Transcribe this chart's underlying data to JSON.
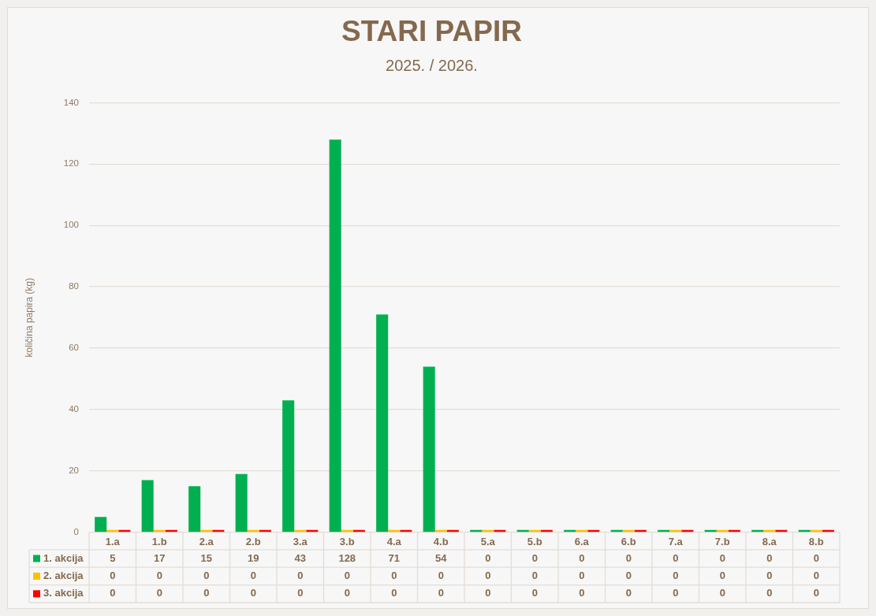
{
  "chart_data": {
    "type": "bar",
    "title": "STARI PAPIR",
    "subtitle": "2025. / 2026.",
    "ylabel": "količina papira (kg)",
    "categories": [
      "1.a",
      "1.b",
      "2.a",
      "2.b",
      "3.a",
      "3.b",
      "4.a",
      "4.b",
      "5.a",
      "5.b",
      "6.a",
      "6.b",
      "7.a",
      "7.b",
      "8.a",
      "8.b"
    ],
    "series": [
      {
        "name": "1. akcija",
        "color": "#00b050",
        "values": [
          5,
          17,
          15,
          19,
          43,
          128,
          71,
          54,
          0,
          0,
          0,
          0,
          0,
          0,
          0,
          0
        ]
      },
      {
        "name": "2. akcija",
        "color": "#ffc000",
        "values": [
          0,
          0,
          0,
          0,
          0,
          0,
          0,
          0,
          0,
          0,
          0,
          0,
          0,
          0,
          0,
          0
        ]
      },
      {
        "name": "3. akcija",
        "color": "#ff0000",
        "values": [
          0,
          0,
          0,
          0,
          0,
          0,
          0,
          0,
          0,
          0,
          0,
          0,
          0,
          0,
          0,
          0
        ]
      }
    ],
    "ylim": [
      0,
      140
    ],
    "yticks": [
      0,
      20,
      40,
      60,
      80,
      100,
      120,
      140
    ],
    "grid": "y",
    "legend": "bottom",
    "data_labels": true
  }
}
